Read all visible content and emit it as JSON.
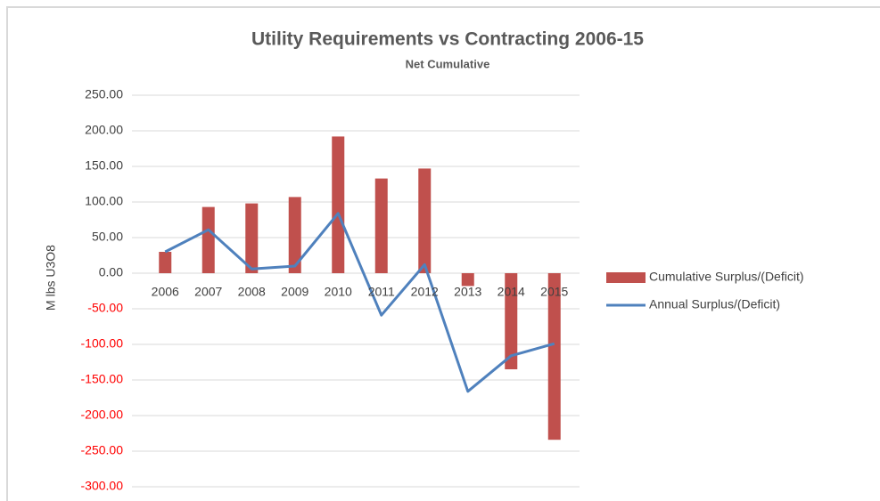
{
  "chart_data": {
    "type": "combo",
    "title": "Utility Requirements vs Contracting 2006-15",
    "subtitle": "Net Cumulative",
    "y_label": "M lbs U3O8",
    "categories": [
      "2006",
      "2007",
      "2008",
      "2009",
      "2010",
      "2011",
      "2012",
      "2013",
      "2014",
      "2015"
    ],
    "series": [
      {
        "name": "Cumulative Surplus/(Deficit)",
        "type": "bar",
        "color": "#c0504d",
        "values": [
          30,
          93,
          98,
          107,
          192,
          133,
          147,
          -18,
          -135,
          -234
        ]
      },
      {
        "name": "Annual Surplus/(Deficit)",
        "type": "line",
        "color": "#4f81bd",
        "values": [
          30,
          61,
          6,
          10,
          84,
          -59,
          12,
          -166,
          -116,
          -99
        ]
      }
    ],
    "ylim": [
      -300,
      250
    ],
    "yticks": [
      {
        "value": -300,
        "label": "-300.00"
      },
      {
        "value": -250,
        "label": "-250.00"
      },
      {
        "value": -200,
        "label": "-200.00"
      },
      {
        "value": -150,
        "label": "-150.00"
      },
      {
        "value": -100,
        "label": "-100.00"
      },
      {
        "value": -50,
        "label": "-50.00"
      },
      {
        "value": 0,
        "label": "0.00"
      },
      {
        "value": 50,
        "label": "50.00"
      },
      {
        "value": 100,
        "label": "100.00"
      },
      {
        "value": 150,
        "label": "150.00"
      },
      {
        "value": 200,
        "label": "200.00"
      },
      {
        "value": 250,
        "label": "250.00"
      }
    ],
    "negative_tick_color": "#ff0000",
    "grid": true,
    "legend": "right"
  }
}
